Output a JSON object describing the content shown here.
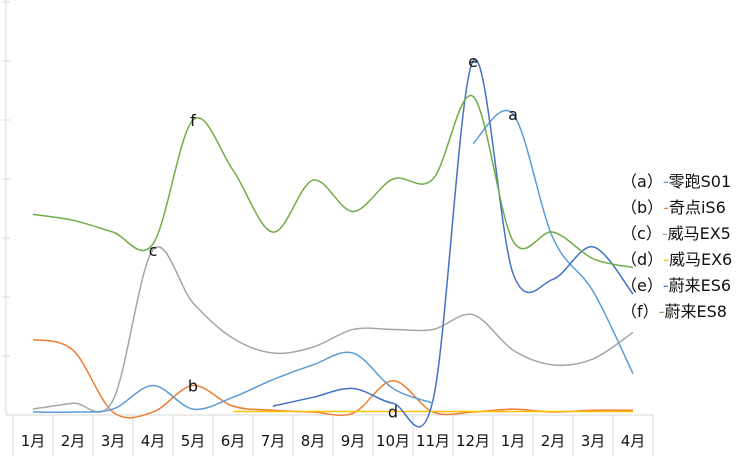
{
  "chart_data": {
    "type": "line",
    "title": "",
    "xlabel": "",
    "ylabel": "",
    "categories": [
      "1月",
      "2月",
      "3月",
      "4月",
      "5月",
      "6月",
      "7月",
      "8月",
      "9月",
      "10月",
      "11月",
      "12月",
      "1月",
      "2月",
      "3月",
      "4月"
    ],
    "ylim": [
      0,
      7
    ],
    "grid": false,
    "legend_position": "right",
    "series": [
      {
        "name": "零跑S01",
        "letter": "a",
        "paren_open": "（",
        "paren_close": "）",
        "color": "#5b9bd5",
        "values": [
          null,
          null,
          null,
          null,
          null,
          null,
          null,
          null,
          null,
          null,
          null,
          4.6,
          5.1,
          3.0,
          2.1,
          0.7
        ],
        "marker_index": 12
      },
      {
        "name": "奇点iS6",
        "letter": "b",
        "paren_open": "（",
        "paren_close": "）",
        "color": "#ed7d31",
        "values": [
          1.28,
          1.1,
          0.05,
          0.05,
          0.5,
          0.15,
          0.08,
          0.05,
          0.03,
          0.58,
          0.05,
          0.05,
          0.1,
          0.05,
          0.08,
          0.08
        ],
        "marker_index": 4
      },
      {
        "name": "威马EX5",
        "letter": "c",
        "paren_open": "（",
        "paren_close": "）",
        "color": "#a5a5a5",
        "values": [
          0.1,
          0.2,
          0.25,
          2.8,
          1.9,
          1.3,
          1.05,
          1.15,
          1.45,
          1.45,
          1.45,
          1.7,
          1.1,
          0.85,
          0.95,
          1.4
        ],
        "marker_index": 3
      },
      {
        "name": "威马EX6",
        "letter": "d",
        "paren_open": "（",
        "paren_close": "）",
        "color": "#ffc000",
        "values": [
          null,
          null,
          null,
          null,
          null,
          0.06,
          0.06,
          0.06,
          0.06,
          0.06,
          0.06,
          0.06,
          0.06,
          0.06,
          0.06,
          0.06
        ],
        "marker_index": 9
      },
      {
        "name": "蔚来ES6",
        "letter": "e",
        "paren_open": "（",
        "paren_close": "）",
        "color": "#4472c4",
        "values": [
          null,
          null,
          null,
          null,
          null,
          null,
          0.15,
          0.3,
          0.45,
          0.2,
          0.25,
          6.0,
          2.4,
          2.3,
          2.85,
          2.05
        ],
        "marker_index": 11
      },
      {
        "name": "蔚来ES8",
        "letter": "f",
        "paren_open": "（",
        "paren_close": "）",
        "color": "#70ad47",
        "values": [
          3.4,
          3.3,
          3.1,
          2.9,
          5.0,
          4.15,
          3.1,
          3.98,
          3.45,
          4.0,
          4.0,
          5.4,
          2.95,
          3.1,
          2.65,
          2.5
        ],
        "marker_index": 4
      },
      {
        "name": "",
        "letter": "",
        "color": "#5b9bd5",
        "legend": false,
        "values": [
          0.05,
          0.05,
          0.1,
          0.5,
          0.1,
          0.3,
          0.6,
          0.85,
          1.05,
          0.45,
          0.2,
          null,
          null,
          null,
          null,
          null
        ]
      }
    ]
  }
}
